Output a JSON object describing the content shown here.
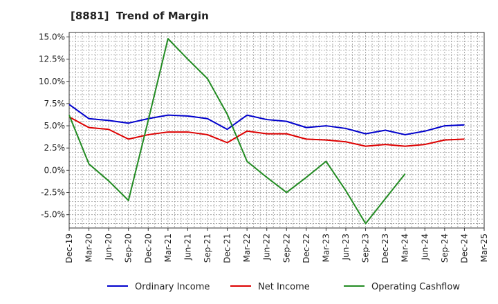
{
  "chart_data": {
    "type": "line",
    "title": "[8881]  Trend of Margin",
    "xlabel": "",
    "ylabel": "",
    "ylim": [
      -6.5,
      15.5
    ],
    "yticks": [
      15.0,
      12.5,
      10.0,
      7.5,
      5.0,
      2.5,
      0.0,
      -2.5,
      -5.0
    ],
    "ytick_labels": [
      "15.0%",
      "12.5%",
      "10.0%",
      "7.5%",
      "5.0%",
      "2.5%",
      "0.0%",
      "-2.5%",
      "-5.0%"
    ],
    "categories": [
      "Dec-19",
      "Mar-20",
      "Jun-20",
      "Sep-20",
      "Dec-20",
      "Mar-21",
      "Jun-21",
      "Sep-21",
      "Dec-21",
      "Mar-22",
      "Jun-22",
      "Sep-22",
      "Dec-22",
      "Mar-23",
      "Jun-23",
      "Sep-23",
      "Dec-23",
      "Mar-24",
      "Jun-24",
      "Sep-24",
      "Dec-24",
      "Mar-25"
    ],
    "grid": true,
    "legend_position": "bottom",
    "series": [
      {
        "name": "Ordinary Income",
        "color": "#0000cc",
        "values": [
          7.4,
          5.8,
          5.6,
          5.3,
          5.8,
          6.2,
          6.1,
          5.8,
          4.6,
          6.2,
          5.7,
          5.5,
          4.8,
          5.0,
          4.7,
          4.1,
          4.5,
          4.0,
          4.4,
          5.0,
          5.1,
          null
        ]
      },
      {
        "name": "Net Income",
        "color": "#dd0000",
        "values": [
          6.0,
          4.8,
          4.6,
          3.5,
          4.0,
          4.3,
          4.3,
          4.0,
          3.1,
          4.4,
          4.1,
          4.1,
          3.5,
          3.4,
          3.2,
          2.7,
          2.9,
          2.7,
          2.9,
          3.4,
          3.5,
          null
        ]
      },
      {
        "name": "Operating Cashflow",
        "color": "#228b22",
        "values": [
          6.2,
          0.7,
          -1.2,
          -3.4,
          5.6,
          14.8,
          12.5,
          10.3,
          6.3,
          1.0,
          -0.8,
          -2.5,
          -0.8,
          1.0,
          -2.3,
          -6.0,
          -3.2,
          -0.4,
          null,
          null,
          null,
          null
        ]
      }
    ]
  }
}
